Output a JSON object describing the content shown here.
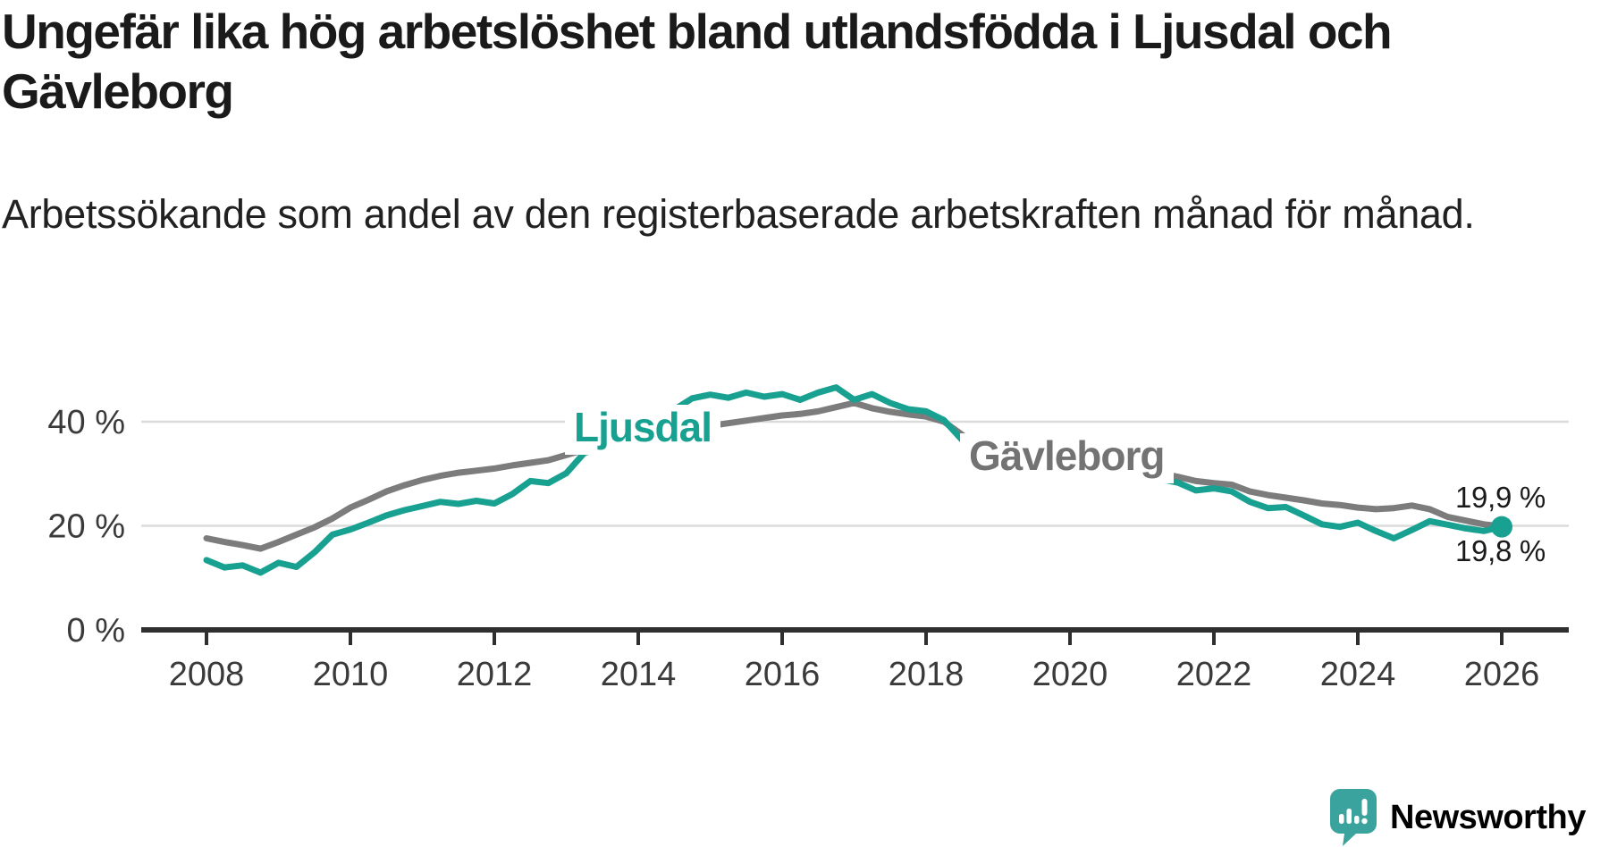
{
  "header": {
    "title": "Ungefär lika hög arbetslöshet bland utlandsfödda i Ljusdal och Gävleborg",
    "subtitle": "Arbetssökande som andel av den registerbaserade arbetskraften månad för månad."
  },
  "footer": {
    "logo_text": "Newsworthy"
  },
  "colors": {
    "ljusdal_teal": "#18A191",
    "gavleborg_gray": "#7C7C7C",
    "gavleborg_label_gray": "#737373",
    "logo_teal": "#3BA39E",
    "axis_dark": "#2F2F2F",
    "gridline": "#DBDBDB",
    "tick_text": "#3A3A3A",
    "value_text": "#1A1A1A"
  },
  "chart_data": {
    "type": "line",
    "title": "Ungefär lika hög arbetslöshet bland utlandsfödda i Ljusdal och Gävleborg",
    "subtitle": "Arbetssökande som andel av den registerbaserade arbetskraften månad för månad.",
    "xlabel": "",
    "ylabel": "",
    "grid": "horizontal",
    "legend": "inline-labels",
    "xlim": [
      2007.1,
      2026.95
    ],
    "ylim": [
      0,
      50
    ],
    "x_ticks": [
      2008,
      2010,
      2012,
      2014,
      2016,
      2018,
      2020,
      2022,
      2024,
      2026
    ],
    "x_tick_labels": [
      "2008",
      "2010",
      "2012",
      "2014",
      "2016",
      "2018",
      "2020",
      "2022",
      "2024",
      "2026"
    ],
    "y_ticks": [
      {
        "value": 0,
        "label": "0 %"
      },
      {
        "value": 20,
        "label": "20 %"
      },
      {
        "value": 40,
        "label": "40 %"
      }
    ],
    "x": [
      2008,
      2008.25,
      2008.5,
      2008.75,
      2009,
      2009.25,
      2009.5,
      2009.75,
      2010,
      2010.25,
      2010.5,
      2010.75,
      2011,
      2011.25,
      2011.5,
      2011.75,
      2012,
      2012.25,
      2012.5,
      2012.75,
      2013,
      2013.25,
      2013.5,
      2013.75,
      2014,
      2014.25,
      2014.5,
      2014.75,
      2015,
      2015.25,
      2015.5,
      2015.75,
      2016,
      2016.25,
      2016.5,
      2016.75,
      2017,
      2017.25,
      2017.5,
      2017.75,
      2018,
      2018.25,
      2018.5,
      2018.75,
      2019,
      2019.25,
      2019.5,
      2019.75,
      2020,
      2020.25,
      2020.5,
      2020.75,
      2021,
      2021.25,
      2021.5,
      2021.75,
      2022,
      2022.25,
      2022.5,
      2022.75,
      2023,
      2023.25,
      2023.5,
      2023.75,
      2024,
      2024.25,
      2024.5,
      2024.75,
      2025,
      2025.25,
      2025.5,
      2025.75,
      2026
    ],
    "series": [
      {
        "name": "Ljusdal",
        "inline_label": "Ljusdal",
        "color": "#18A191",
        "label_color": "#18A191",
        "end_label": "19,8 %",
        "end_value": 19.8,
        "end_dot": true,
        "values": [
          13.4,
          12.0,
          12.4,
          11.0,
          12.9,
          12.1,
          14.9,
          18.3,
          19.3,
          20.6,
          22.0,
          23.0,
          23.8,
          24.6,
          24.2,
          24.8,
          24.3,
          26.1,
          28.6,
          28.2,
          30.1,
          34.0,
          35.0,
          36.5,
          38.0,
          40.5,
          42.3,
          44.5,
          45.2,
          44.6,
          45.6,
          44.8,
          45.3,
          44.2,
          45.6,
          46.6,
          44.2,
          45.3,
          43.6,
          42.4,
          42.0,
          40.3,
          36.5,
          34.0,
          33.0,
          32.0,
          31.5,
          31.0,
          31.5,
          32.5,
          32.0,
          31.0,
          30.0,
          29.0,
          28.3,
          26.8,
          27.2,
          26.6,
          24.6,
          23.4,
          23.6,
          22.0,
          20.3,
          19.8,
          20.6,
          19.0,
          17.6,
          19.2,
          20.9,
          20.2,
          19.5,
          19.0,
          19.8
        ]
      },
      {
        "name": "Gävleborg",
        "inline_label": "Gävleborg",
        "color": "#7C7C7C",
        "label_color": "#737373",
        "end_label": "19,9 %",
        "end_value": 19.9,
        "end_dot": false,
        "values": [
          17.6,
          16.9,
          16.3,
          15.6,
          16.9,
          18.3,
          19.7,
          21.4,
          23.5,
          25.0,
          26.6,
          27.8,
          28.8,
          29.6,
          30.2,
          30.6,
          31.0,
          31.6,
          32.1,
          32.6,
          33.6,
          34.6,
          35.6,
          36.6,
          37.4,
          38.0,
          38.4,
          38.8,
          39.2,
          39.7,
          40.2,
          40.7,
          41.2,
          41.5,
          42.0,
          42.8,
          43.6,
          42.6,
          41.9,
          41.4,
          41.0,
          40.0,
          37.5,
          34.8,
          33.8,
          32.8,
          32.0,
          31.5,
          31.8,
          32.6,
          32.2,
          31.4,
          30.8,
          30.1,
          29.4,
          28.6,
          28.2,
          27.9,
          26.6,
          25.9,
          25.4,
          24.9,
          24.3,
          24.0,
          23.5,
          23.2,
          23.4,
          23.9,
          23.2,
          21.7,
          21.0,
          20.3,
          19.9
        ]
      }
    ]
  }
}
